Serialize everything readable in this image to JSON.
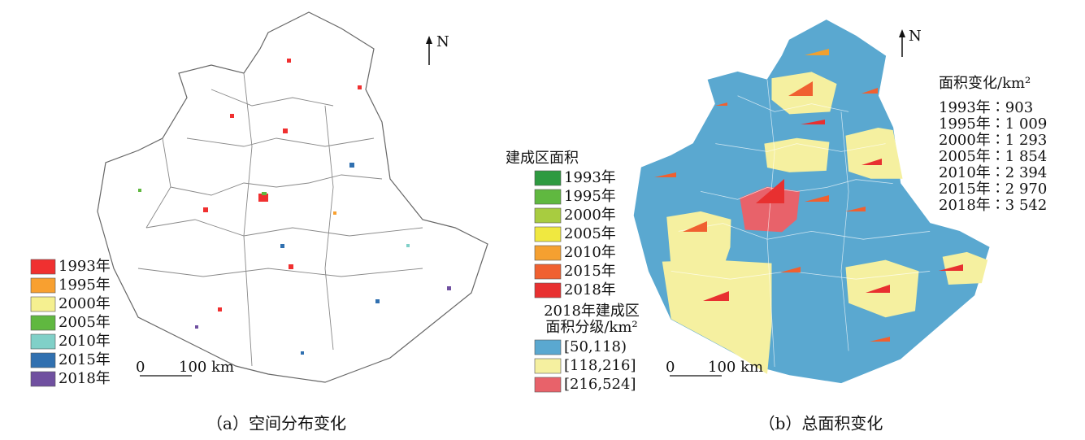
{
  "panel_a": {
    "north": "N",
    "legend": [
      {
        "label": "1993年",
        "color": "#f03030"
      },
      {
        "label": "1995年",
        "color": "#f8a030"
      },
      {
        "label": "2000年",
        "color": "#f5f090"
      },
      {
        "label": "2005年",
        "color": "#60b840"
      },
      {
        "label": "2010年",
        "color": "#80d0c8"
      },
      {
        "label": "2015年",
        "color": "#3070b0"
      },
      {
        "label": "2018年",
        "color": "#7050a0"
      }
    ],
    "scale": {
      "start": "0",
      "end": "100 km"
    },
    "caption": "（a）空间分布变化"
  },
  "panel_b": {
    "north": "N",
    "legend_title": "建成区面积",
    "legend": [
      {
        "label": "1993年",
        "color": "#2e9a40"
      },
      {
        "label": "1995年",
        "color": "#60b840"
      },
      {
        "label": "2000年",
        "color": "#a8cc40"
      },
      {
        "label": "2005年",
        "color": "#f0e840"
      },
      {
        "label": "2010年",
        "color": "#f5a030"
      },
      {
        "label": "2015年",
        "color": "#f06030"
      },
      {
        "label": "2018年",
        "color": "#e83030"
      }
    ],
    "class_title": [
      "2018年建成区",
      "面积分级/km²"
    ],
    "classes": [
      {
        "label": "[50,118)",
        "color": "#5aa8d0"
      },
      {
        "label": "[118,216]",
        "color": "#f5f0a0"
      },
      {
        "label": "[216,524]",
        "color": "#e8626a"
      }
    ],
    "area_title": "面积变化/km²",
    "area_changes": [
      "1993年∶903",
      "1995年∶1 009",
      "2000年∶1 293",
      "2005年∶1 854",
      "2010年∶2 394",
      "2015年∶2 970",
      "2018年∶3 542"
    ],
    "scale": {
      "start": "0",
      "end": "100 km"
    },
    "caption": "（b）总面积变化"
  }
}
